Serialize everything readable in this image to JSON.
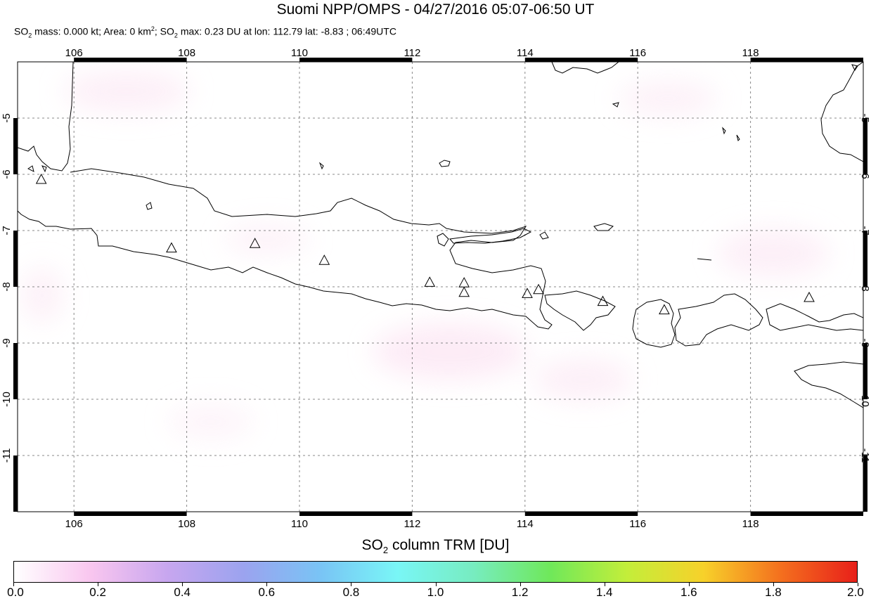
{
  "title": "Suomi NPP/OMPS - 04/27/2016 05:07-06:50 UT",
  "subtitle": {
    "mass_label": "SO",
    "mass_rest": " mass: 0.000 kt; Area: 0 km",
    "area_exp": "2",
    "max_label": "; SO",
    "max_rest": " max: 0.23 DU at lon: 112.79 lat: -8.83 ; 06:49UTC",
    "sub2": "2"
  },
  "map": {
    "lon_range": [
      105,
      120
    ],
    "lat_range": [
      -12,
      -4
    ],
    "lon_ticks": [
      "106",
      "108",
      "110",
      "112",
      "114",
      "116",
      "118"
    ],
    "lat_ticks": [
      "-5",
      "-6",
      "-7",
      "-8",
      "-9",
      "-10",
      "-11"
    ],
    "grid": true,
    "volcanoes": [
      {
        "lon": 105.42,
        "lat": -6.1
      },
      {
        "lon": 107.73,
        "lat": -7.32
      },
      {
        "lon": 109.21,
        "lat": -7.24
      },
      {
        "lon": 110.44,
        "lat": -7.54
      },
      {
        "lon": 112.31,
        "lat": -7.93
      },
      {
        "lon": 112.92,
        "lat": -7.94
      },
      {
        "lon": 112.92,
        "lat": -8.11
      },
      {
        "lon": 114.04,
        "lat": -8.13
      },
      {
        "lon": 114.24,
        "lat": -8.06
      },
      {
        "lon": 115.38,
        "lat": -8.27
      },
      {
        "lon": 116.47,
        "lat": -8.42
      },
      {
        "lon": 119.04,
        "lat": -8.2
      }
    ]
  },
  "colorbar": {
    "title_pre": "SO",
    "title_sub": "2",
    "title_post": " column TRM [DU]",
    "ticks": [
      "0.0",
      "0.2",
      "0.4",
      "0.6",
      "0.8",
      "1.0",
      "1.2",
      "1.4",
      "1.6",
      "1.8",
      "2.0"
    ],
    "range": [
      0.0,
      2.0
    ],
    "colors": [
      "#ffffff",
      "#f9c6ef",
      "#c7a6ef",
      "#9ba3ef",
      "#79c4f5",
      "#79f6f6",
      "#77ecc0",
      "#6fe85a",
      "#c3ee3a",
      "#f7d12a",
      "#f4701e",
      "#e8201a"
    ]
  }
}
